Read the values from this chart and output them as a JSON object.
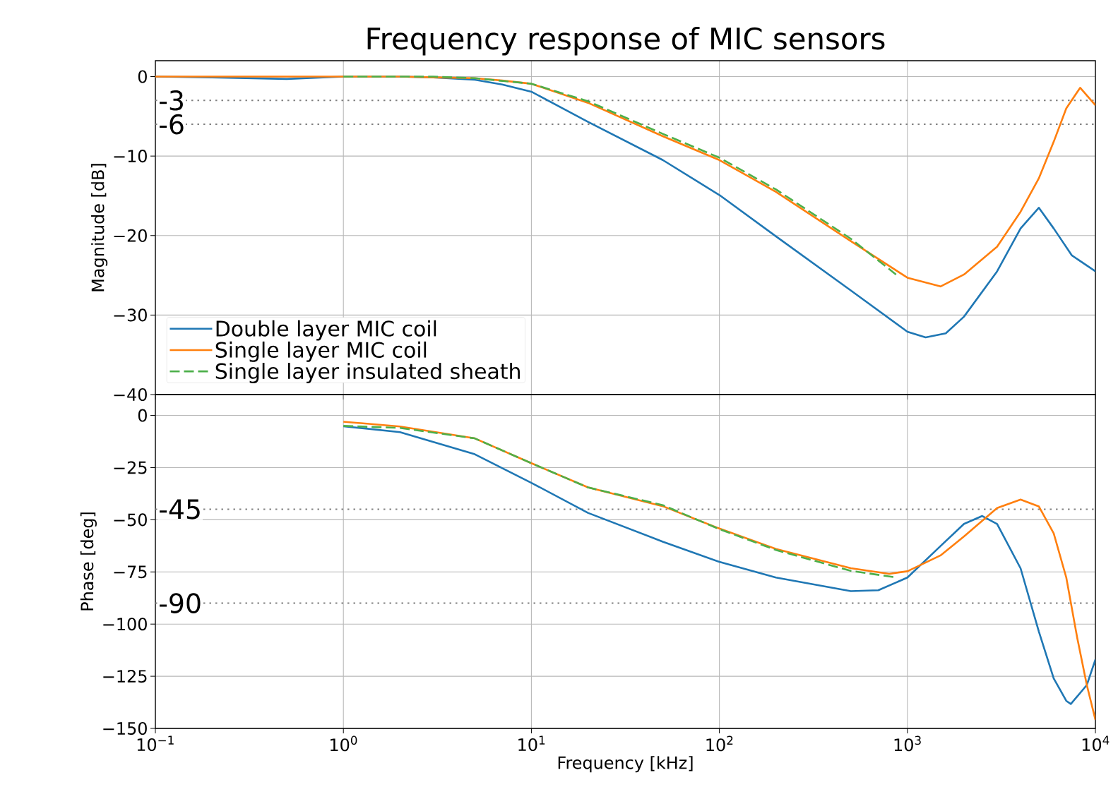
{
  "chart_data": [
    {
      "type": "line",
      "title": "Frequency response of MIC sensors",
      "ylabel": "Magnitude [dB]",
      "log": "x",
      "grid": true,
      "legend": "bottom left",
      "tick_labels": "y",
      "xlim": [
        0.1,
        10000
      ],
      "ylim": [
        -40,
        2
      ],
      "xticks": [
        {
          "value": 0.1,
          "label": null
        },
        {
          "value": 1,
          "label": null
        },
        {
          "value": 10,
          "label": null
        },
        {
          "value": 100,
          "label": null
        },
        {
          "value": 1000,
          "label": null
        },
        {
          "value": 10000,
          "label": null
        }
      ],
      "yticks": [
        0,
        {
          "value": -10,
          "label": "−10"
        },
        {
          "value": -20,
          "label": "−20"
        },
        {
          "value": -30,
          "label": "−30"
        },
        {
          "value": -40,
          "label": "−40"
        }
      ],
      "ref_lines": [
        {
          "axis": "y",
          "value": -3,
          "label": "-3",
          "color": "#808080",
          "line_style": "dotted"
        },
        {
          "axis": "y",
          "value": -6,
          "label": "-6",
          "color": "#808080",
          "line_style": "dotted"
        }
      ],
      "series": [
        {
          "name": "Double layer MIC coil",
          "color": "#1f77b4",
          "line_style": "solid",
          "x": [
            0.1,
            0.2,
            0.5,
            1,
            2,
            3,
            5,
            7,
            10,
            20,
            50,
            100,
            200,
            500,
            1000,
            1250,
            1600,
            2000,
            3000,
            4000,
            5000,
            6000,
            7500,
            10000
          ],
          "values": [
            0,
            -0.1,
            -0.3,
            0,
            0,
            -0.1,
            -0.4,
            -1.0,
            -1.9,
            -5.7,
            -10.5,
            -14.9,
            -20.1,
            -26.9,
            -32.1,
            -32.8,
            -32.3,
            -30.2,
            -24.5,
            -19.1,
            -16.5,
            -19.1,
            -22.5,
            -24.5
          ]
        },
        {
          "name": "Single layer MIC coil",
          "color": "#ff7f0e",
          "line_style": "solid",
          "x": [
            0.1,
            1,
            2,
            3,
            5,
            7,
            10,
            20,
            50,
            100,
            200,
            500,
            1000,
            1500,
            2000,
            3000,
            4000,
            5000,
            6000,
            7000,
            8300,
            10000
          ],
          "values": [
            0,
            0,
            0,
            -0.1,
            -0.2,
            -0.5,
            -0.9,
            -3.3,
            -7.5,
            -10.5,
            -14.5,
            -20.7,
            -25.3,
            -26.4,
            -24.9,
            -21.4,
            -17,
            -12.8,
            -8.2,
            -4,
            -1.4,
            -3.6
          ]
        },
        {
          "name": "Single layer insulated sheath",
          "color": "#4daf4a",
          "line_style": "dashed",
          "x": [
            1,
            3,
            5,
            10,
            20,
            50,
            100,
            200,
            500,
            870
          ],
          "values": [
            0,
            0,
            -0.2,
            -0.9,
            -3.1,
            -7.2,
            -10.2,
            -14.2,
            -20.4,
            -24.9
          ]
        }
      ]
    },
    {
      "type": "line",
      "xlabel": "Frequency [kHz]",
      "ylabel": "Phase [deg]",
      "log": "x",
      "grid": true,
      "xlim": [
        0.1,
        10000
      ],
      "ylim": [
        -150,
        10
      ],
      "xticks": [
        {
          "value": 0.1,
          "label": "10$^{−1}$"
        },
        {
          "value": 1,
          "label": "10$^{0}$"
        },
        {
          "value": 10,
          "label": "10$^{1}$"
        },
        {
          "value": 100,
          "label": "10$^{2}$"
        },
        {
          "value": 1000,
          "label": "10$^{3}$"
        },
        {
          "value": 10000,
          "label": "10$^{4}$"
        }
      ],
      "yticks": [
        0,
        {
          "value": -25,
          "label": "−25"
        },
        {
          "value": -50,
          "label": "−50"
        },
        {
          "value": -75,
          "label": "−75"
        },
        {
          "value": -100,
          "label": "−100"
        },
        {
          "value": -125,
          "label": "−125"
        },
        {
          "value": -150,
          "label": "−150"
        }
      ],
      "ref_lines": [
        {
          "axis": "y",
          "value": -45,
          "label": "-45",
          "color": "#808080",
          "line_style": "dotted"
        },
        {
          "axis": "y",
          "value": -90,
          "label": "-90",
          "color": "#808080",
          "line_style": "dotted"
        }
      ],
      "series": [
        {
          "color": "#1f77b4",
          "line_style": "solid",
          "x": [
            1,
            2,
            5,
            10,
            20,
            50,
            100,
            200,
            500,
            700,
            1000,
            1500,
            2000,
            2500,
            3000,
            4000,
            5000,
            6000,
            7000,
            7400,
            9000,
            10000
          ],
          "values": [
            -5.2,
            -8,
            -18.6,
            -32.3,
            -46.7,
            -60.5,
            -70.2,
            -77.7,
            -84.2,
            -83.8,
            -77.7,
            -62.6,
            -52,
            -48.2,
            -52,
            -73.3,
            -103.5,
            -126,
            -136.8,
            -138.3,
            -129.2,
            -117
          ]
        },
        {
          "color": "#ff7f0e",
          "line_style": "solid",
          "x": [
            1,
            2,
            5,
            10,
            20,
            50,
            100,
            200,
            500,
            800,
            1000,
            1500,
            2000,
            3000,
            4000,
            5000,
            6000,
            7000,
            8000,
            9000,
            10000
          ],
          "values": [
            -3,
            -5.3,
            -11,
            -22.9,
            -34.5,
            -43.5,
            -54.2,
            -64,
            -73.2,
            -75.9,
            -74.7,
            -67.1,
            -58,
            -44.4,
            -40.3,
            -43.6,
            -56.5,
            -77.7,
            -106.5,
            -129.2,
            -145.9
          ]
        },
        {
          "color": "#4daf4a",
          "line_style": "dashed",
          "x": [
            1,
            2,
            5,
            10,
            20,
            50,
            100,
            200,
            500,
            850
          ],
          "values": [
            -5,
            -6,
            -11,
            -22.9,
            -34.5,
            -43,
            -54.5,
            -64.5,
            -74.5,
            -77.5
          ]
        }
      ]
    }
  ]
}
